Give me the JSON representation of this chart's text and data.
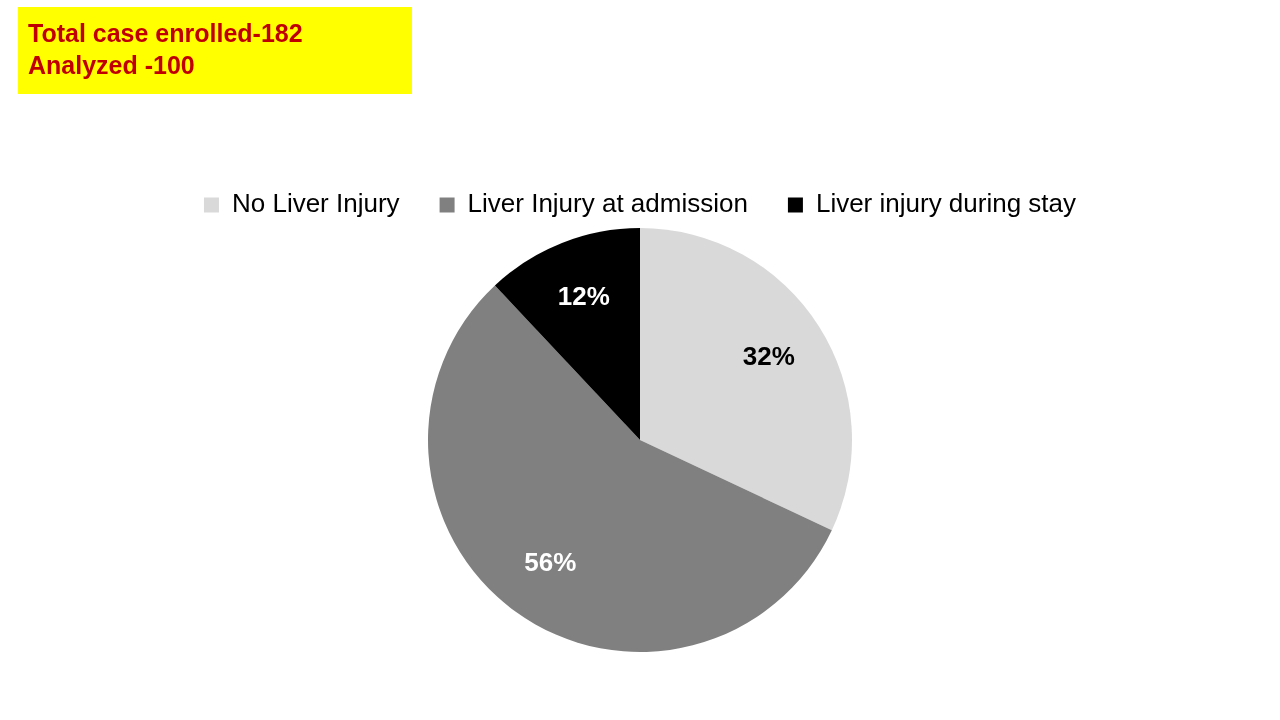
{
  "chart_data": {
    "type": "pie",
    "categories": [
      "No Liver Injury",
      "Liver Injury at admission",
      "Liver injury during stay"
    ],
    "values": [
      32,
      56,
      12
    ],
    "colors": [
      "#d9d9d9",
      "#808080",
      "#000000"
    ],
    "value_labels": [
      "32%",
      "56%",
      "12%"
    ],
    "legend": "top",
    "annotations": [
      "Total case enrolled-182",
      "Analyzed -100"
    ]
  }
}
